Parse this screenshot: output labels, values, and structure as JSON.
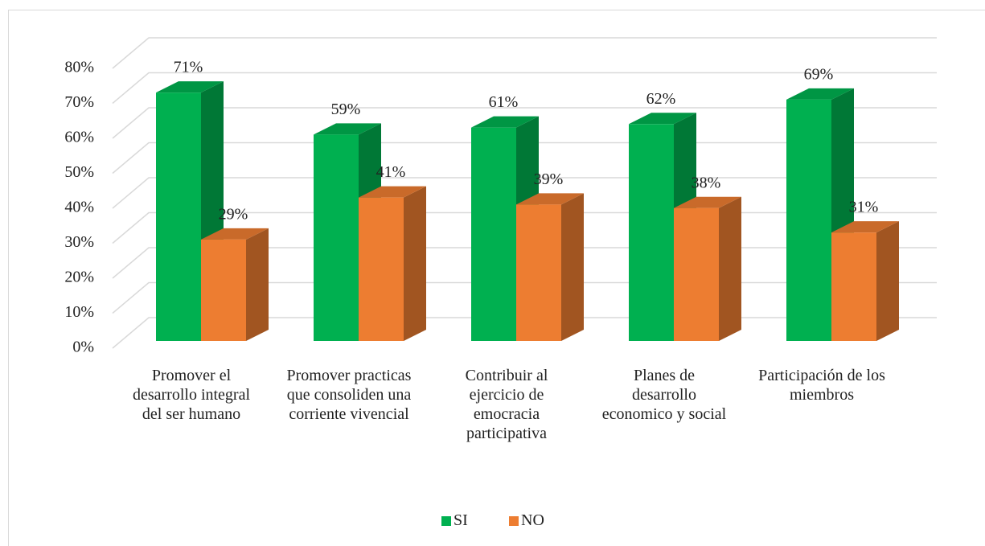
{
  "chart_data": {
    "type": "bar3d",
    "categories": [
      "Promover el desarrollo integral del ser humano",
      "Promover practicas que consoliden una corriente vivencial",
      "Contribuir al ejercicio de emocracia participativa",
      "Planes de desarrollo economico y social",
      "Participación de los miembros"
    ],
    "series": [
      {
        "name": "SI",
        "color": "#00b050",
        "values": [
          71,
          59,
          61,
          62,
          69
        ],
        "value_labels": [
          "71%",
          "59%",
          "61%",
          "62%",
          "69%"
        ]
      },
      {
        "name": "NO",
        "color": "#ed7d31",
        "values": [
          29,
          41,
          39,
          38,
          31
        ],
        "value_labels": [
          "29%",
          "41%",
          "39%",
          "38%",
          "31%"
        ]
      }
    ],
    "ylim": [
      0,
      80
    ],
    "yticks": [
      {
        "value": 0,
        "label": "0%"
      },
      {
        "value": 10,
        "label": "10%"
      },
      {
        "value": 20,
        "label": "20%"
      },
      {
        "value": 30,
        "label": "30%"
      },
      {
        "value": 40,
        "label": "40%"
      },
      {
        "value": 50,
        "label": "50%"
      },
      {
        "value": 60,
        "label": "60%"
      },
      {
        "value": 70,
        "label": "70%"
      },
      {
        "value": 80,
        "label": "80%"
      }
    ],
    "grid": true,
    "legend": "bottom"
  }
}
